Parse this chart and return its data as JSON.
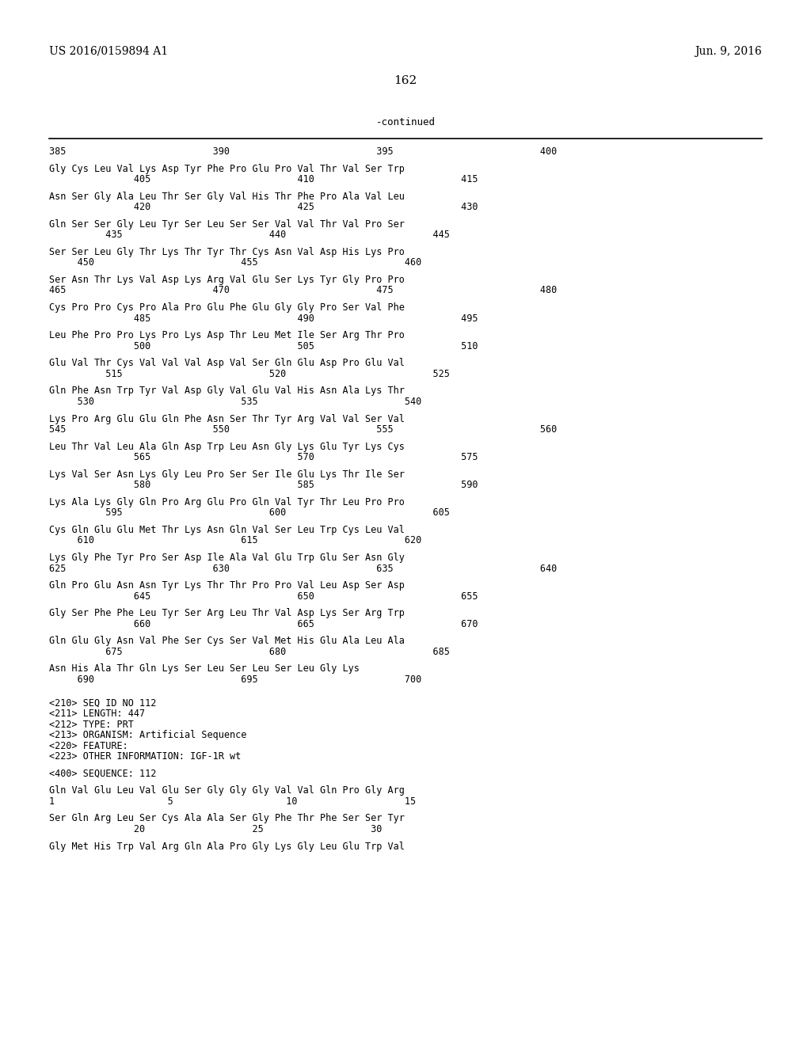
{
  "header_left": "US 2016/0159894 A1",
  "header_right": "Jun. 9, 2016",
  "page_number": "162",
  "continued_label": "-continued",
  "background_color": "#ffffff",
  "text_color": "#000000",
  "content": [
    {
      "text": "385                          390                          395                          400",
      "indent": 0
    },
    {
      "text": "",
      "indent": 0
    },
    {
      "text": "Gly Cys Leu Val Lys Asp Tyr Phe Pro Glu Pro Val Thr Val Ser Trp",
      "indent": 0
    },
    {
      "text": "               405                          410                          415",
      "indent": 0
    },
    {
      "text": "",
      "indent": 0
    },
    {
      "text": "Asn Ser Gly Ala Leu Thr Ser Gly Val His Thr Phe Pro Ala Val Leu",
      "indent": 0
    },
    {
      "text": "               420                          425                          430",
      "indent": 0
    },
    {
      "text": "",
      "indent": 0
    },
    {
      "text": "Gln Ser Ser Gly Leu Tyr Ser Leu Ser Ser Val Val Thr Val Pro Ser",
      "indent": 0
    },
    {
      "text": "          435                          440                          445",
      "indent": 0
    },
    {
      "text": "",
      "indent": 0
    },
    {
      "text": "Ser Ser Leu Gly Thr Lys Thr Tyr Thr Cys Asn Val Asp His Lys Pro",
      "indent": 0
    },
    {
      "text": "     450                          455                          460",
      "indent": 0
    },
    {
      "text": "",
      "indent": 0
    },
    {
      "text": "Ser Asn Thr Lys Val Asp Lys Arg Val Glu Ser Lys Tyr Gly Pro Pro",
      "indent": 0
    },
    {
      "text": "465                          470                          475                          480",
      "indent": 0
    },
    {
      "text": "",
      "indent": 0
    },
    {
      "text": "Cys Pro Pro Cys Pro Ala Pro Glu Phe Glu Gly Gly Pro Ser Val Phe",
      "indent": 0
    },
    {
      "text": "               485                          490                          495",
      "indent": 0
    },
    {
      "text": "",
      "indent": 0
    },
    {
      "text": "Leu Phe Pro Pro Lys Pro Lys Asp Thr Leu Met Ile Ser Arg Thr Pro",
      "indent": 0
    },
    {
      "text": "               500                          505                          510",
      "indent": 0
    },
    {
      "text": "",
      "indent": 0
    },
    {
      "text": "Glu Val Thr Cys Val Val Val Asp Val Ser Gln Glu Asp Pro Glu Val",
      "indent": 0
    },
    {
      "text": "          515                          520                          525",
      "indent": 0
    },
    {
      "text": "",
      "indent": 0
    },
    {
      "text": "Gln Phe Asn Trp Tyr Val Asp Gly Val Glu Val His Asn Ala Lys Thr",
      "indent": 0
    },
    {
      "text": "     530                          535                          540",
      "indent": 0
    },
    {
      "text": "",
      "indent": 0
    },
    {
      "text": "Lys Pro Arg Glu Glu Gln Phe Asn Ser Thr Tyr Arg Val Val Ser Val",
      "indent": 0
    },
    {
      "text": "545                          550                          555                          560",
      "indent": 0
    },
    {
      "text": "",
      "indent": 0
    },
    {
      "text": "Leu Thr Val Leu Ala Gln Asp Trp Leu Asn Gly Lys Glu Tyr Lys Cys",
      "indent": 0
    },
    {
      "text": "               565                          570                          575",
      "indent": 0
    },
    {
      "text": "",
      "indent": 0
    },
    {
      "text": "Lys Val Ser Asn Lys Gly Leu Pro Ser Ser Ile Glu Lys Thr Ile Ser",
      "indent": 0
    },
    {
      "text": "               580                          585                          590",
      "indent": 0
    },
    {
      "text": "",
      "indent": 0
    },
    {
      "text": "Lys Ala Lys Gly Gln Pro Arg Glu Pro Gln Val Tyr Thr Leu Pro Pro",
      "indent": 0
    },
    {
      "text": "          595                          600                          605",
      "indent": 0
    },
    {
      "text": "",
      "indent": 0
    },
    {
      "text": "Cys Gln Glu Glu Met Thr Lys Asn Gln Val Ser Leu Trp Cys Leu Val",
      "indent": 0
    },
    {
      "text": "     610                          615                          620",
      "indent": 0
    },
    {
      "text": "",
      "indent": 0
    },
    {
      "text": "Lys Gly Phe Tyr Pro Ser Asp Ile Ala Val Glu Trp Glu Ser Asn Gly",
      "indent": 0
    },
    {
      "text": "625                          630                          635                          640",
      "indent": 0
    },
    {
      "text": "",
      "indent": 0
    },
    {
      "text": "Gln Pro Glu Asn Asn Tyr Lys Thr Thr Pro Pro Val Leu Asp Ser Asp",
      "indent": 0
    },
    {
      "text": "               645                          650                          655",
      "indent": 0
    },
    {
      "text": "",
      "indent": 0
    },
    {
      "text": "Gly Ser Phe Phe Leu Tyr Ser Arg Leu Thr Val Asp Lys Ser Arg Trp",
      "indent": 0
    },
    {
      "text": "               660                          665                          670",
      "indent": 0
    },
    {
      "text": "",
      "indent": 0
    },
    {
      "text": "Gln Glu Gly Asn Val Phe Ser Cys Ser Val Met His Glu Ala Leu Ala",
      "indent": 0
    },
    {
      "text": "          675                          680                          685",
      "indent": 0
    },
    {
      "text": "",
      "indent": 0
    },
    {
      "text": "Asn His Ala Thr Gln Lys Ser Leu Ser Leu Ser Leu Gly Lys",
      "indent": 0
    },
    {
      "text": "     690                          695                          700",
      "indent": 0
    },
    {
      "text": "",
      "indent": 0
    },
    {
      "text": "",
      "indent": 0
    },
    {
      "text": "<210> SEQ ID NO 112",
      "indent": 0
    },
    {
      "text": "<211> LENGTH: 447",
      "indent": 0
    },
    {
      "text": "<212> TYPE: PRT",
      "indent": 0
    },
    {
      "text": "<213> ORGANISM: Artificial Sequence",
      "indent": 0
    },
    {
      "text": "<220> FEATURE:",
      "indent": 0
    },
    {
      "text": "<223> OTHER INFORMATION: IGF-1R wt",
      "indent": 0
    },
    {
      "text": "",
      "indent": 0
    },
    {
      "text": "<400> SEQUENCE: 112",
      "indent": 0
    },
    {
      "text": "",
      "indent": 0
    },
    {
      "text": "Gln Val Glu Leu Val Glu Ser Gly Gly Gly Val Val Gln Pro Gly Arg",
      "indent": 0
    },
    {
      "text": "1                    5                    10                   15",
      "indent": 0
    },
    {
      "text": "",
      "indent": 0
    },
    {
      "text": "Ser Gln Arg Leu Ser Cys Ala Ala Ser Gly Phe Thr Phe Ser Ser Tyr",
      "indent": 0
    },
    {
      "text": "               20                   25                   30",
      "indent": 0
    },
    {
      "text": "",
      "indent": 0
    },
    {
      "text": "Gly Met His Trp Val Arg Gln Ala Pro Gly Lys Gly Leu Glu Trp Val",
      "indent": 0
    }
  ]
}
